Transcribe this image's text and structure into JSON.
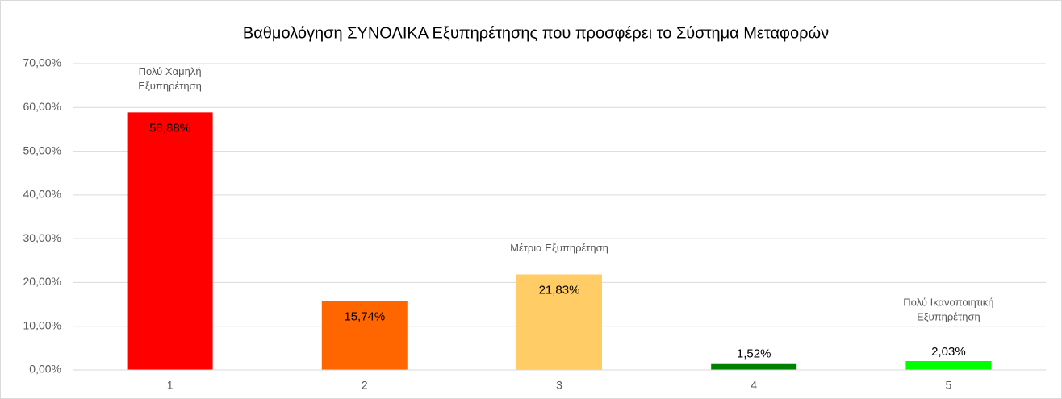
{
  "chart_data": {
    "type": "bar",
    "title": "Βαθμολόγηση ΣΥΝΟΛΙΚΑ Εξυπηρέτησης που προσφέρει το Σύστημα Μεταφορών",
    "categories": [
      "1",
      "2",
      "3",
      "4",
      "5"
    ],
    "values": [
      58.88,
      15.74,
      21.83,
      1.52,
      2.03
    ],
    "value_labels": [
      "58,88%",
      "15,74%",
      "21,83%",
      "1,52%",
      "2,03%"
    ],
    "colors": [
      "#ff0000",
      "#ff6600",
      "#ffcc66",
      "#008000",
      "#00ff00"
    ],
    "annotations": [
      {
        "category": "1",
        "lines": [
          "Πολύ Χαμηλή",
          "Εξυπηρέτηση"
        ]
      },
      {
        "category": "3",
        "lines": [
          "Μέτρια Εξυπηρέτηση"
        ]
      },
      {
        "category": "5",
        "lines": [
          "Πολύ Ικανοποιητική",
          "Εξυπηρέτηση"
        ]
      }
    ],
    "ylim": [
      0,
      70
    ],
    "yticks": [
      {
        "value": 0,
        "label": "0,00%"
      },
      {
        "value": 10,
        "label": "10,00%"
      },
      {
        "value": 20,
        "label": "20,00%"
      },
      {
        "value": 30,
        "label": "30,00%"
      },
      {
        "value": 40,
        "label": "40,00%"
      },
      {
        "value": 50,
        "label": "50,00%"
      },
      {
        "value": 60,
        "label": "60,00%"
      },
      {
        "value": 70,
        "label": "70,00%"
      }
    ],
    "grid": true
  }
}
